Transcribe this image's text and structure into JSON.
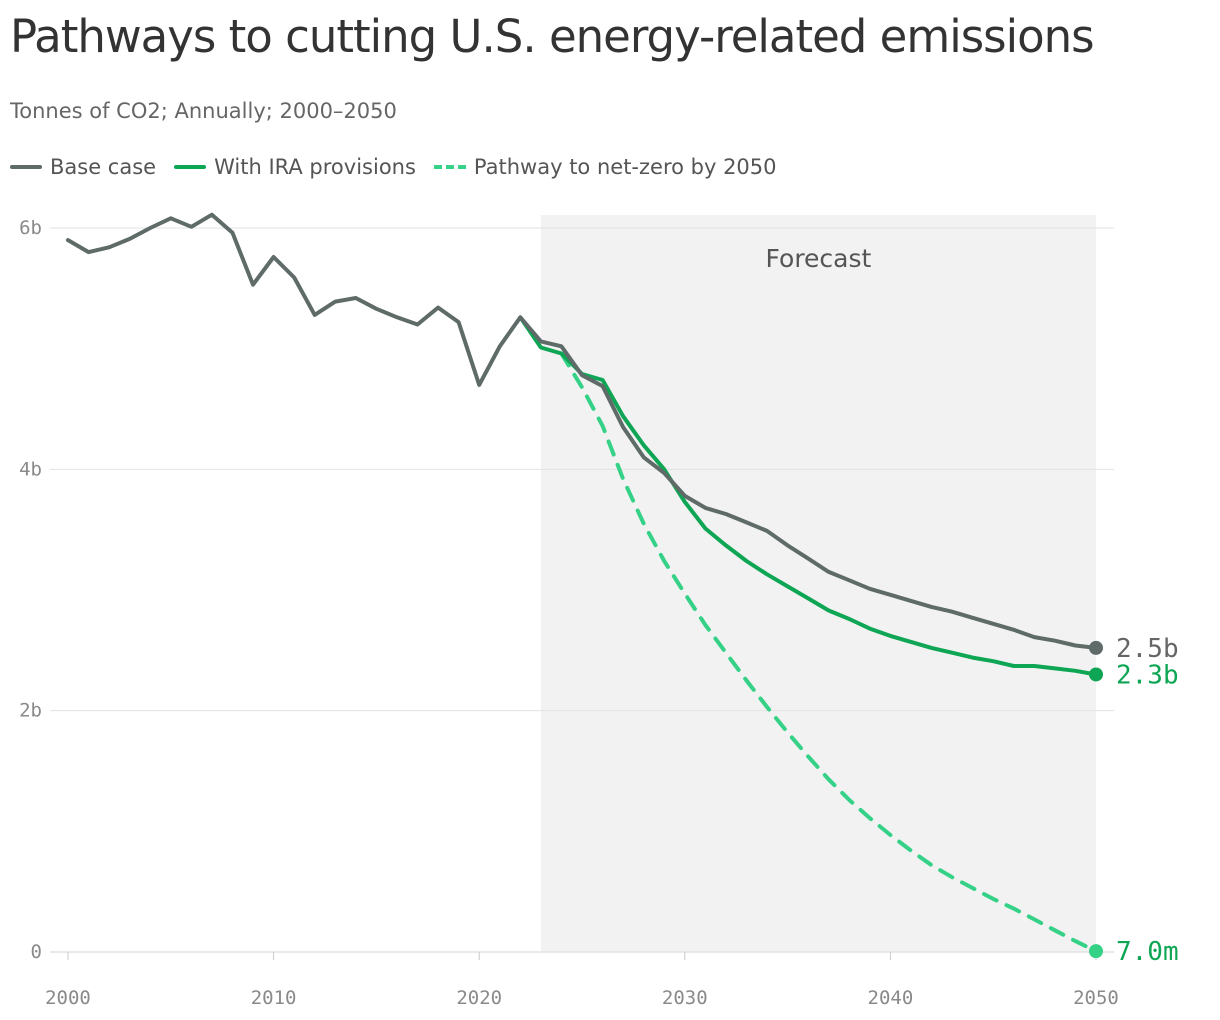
{
  "title": "Pathways to cutting U.S. energy-related emissions",
  "subtitle": "Tonnes of CO2; Annually; 2000–2050",
  "colors": {
    "base": "#5f6b68",
    "ira": "#0ea654",
    "netzero": "#34d187",
    "forecast_band": "#f2f2f2",
    "grid": "#e2e2e2"
  },
  "forecast_label": "Forecast",
  "chart_data": {
    "type": "line",
    "title": "Pathways to cutting U.S. energy-related emissions",
    "xlabel": "",
    "ylabel": "",
    "xlim": [
      2000,
      2050
    ],
    "ylim": [
      0,
      6.1
    ],
    "unit": "billion tonnes",
    "x_ticks": [
      2000,
      2010,
      2020,
      2030,
      2040,
      2050
    ],
    "x_tick_labels": [
      "2000",
      "2010",
      "2020",
      "2030",
      "2040",
      "2050"
    ],
    "y_ticks": [
      0,
      2,
      4,
      6
    ],
    "y_tick_labels": [
      "0",
      "2b",
      "4b",
      "6b"
    ],
    "grid": "horizontal",
    "legend": "top-left",
    "forecast_region": [
      2023,
      2050
    ],
    "series": [
      {
        "name": "Base case",
        "style": "solid",
        "color_key": "base",
        "end_label": "2.5b",
        "x": [
          2000,
          2001,
          2002,
          2003,
          2004,
          2005,
          2006,
          2007,
          2008,
          2009,
          2010,
          2011,
          2012,
          2013,
          2014,
          2015,
          2016,
          2017,
          2018,
          2019,
          2020,
          2021,
          2022,
          2023,
          2024,
          2025,
          2026,
          2027,
          2028,
          2029,
          2030,
          2031,
          2032,
          2033,
          2034,
          2035,
          2036,
          2037,
          2038,
          2039,
          2040,
          2041,
          2042,
          2043,
          2044,
          2045,
          2046,
          2047,
          2048,
          2049,
          2050
        ],
        "values": [
          5.9,
          5.8,
          5.84,
          5.91,
          6.0,
          6.08,
          6.01,
          6.11,
          5.96,
          5.53,
          5.76,
          5.59,
          5.28,
          5.39,
          5.42,
          5.33,
          5.26,
          5.2,
          5.34,
          5.22,
          4.7,
          5.02,
          5.26,
          5.06,
          5.02,
          4.78,
          4.69,
          4.35,
          4.1,
          3.97,
          3.78,
          3.68,
          3.63,
          3.56,
          3.49,
          3.37,
          3.26,
          3.15,
          3.08,
          3.01,
          2.96,
          2.91,
          2.86,
          2.82,
          2.77,
          2.72,
          2.67,
          2.61,
          2.58,
          2.54,
          2.52
        ]
      },
      {
        "name": "With IRA provisions",
        "style": "solid",
        "color_key": "ira",
        "end_label": "2.3b",
        "x": [
          2022,
          2023,
          2024,
          2025,
          2026,
          2027,
          2028,
          2029,
          2030,
          2031,
          2032,
          2033,
          2034,
          2035,
          2036,
          2037,
          2038,
          2039,
          2040,
          2041,
          2042,
          2043,
          2044,
          2045,
          2046,
          2047,
          2048,
          2049,
          2050
        ],
        "values": [
          5.26,
          5.01,
          4.96,
          4.79,
          4.74,
          4.44,
          4.2,
          4.0,
          3.73,
          3.51,
          3.37,
          3.24,
          3.13,
          3.03,
          2.93,
          2.83,
          2.76,
          2.68,
          2.62,
          2.57,
          2.52,
          2.48,
          2.44,
          2.41,
          2.37,
          2.37,
          2.35,
          2.33,
          2.3
        ]
      },
      {
        "name": "Pathway to net-zero by 2050",
        "style": "dashed",
        "color_key": "netzero",
        "end_label": "7.0m",
        "x": [
          2024,
          2025,
          2026,
          2027,
          2028,
          2029,
          2030,
          2031,
          2032,
          2033,
          2034,
          2035,
          2036,
          2037,
          2038,
          2039,
          2040,
          2041,
          2042,
          2043,
          2044,
          2045,
          2046,
          2047,
          2048,
          2049,
          2050
        ],
        "values": [
          4.96,
          4.68,
          4.36,
          3.92,
          3.55,
          3.24,
          2.97,
          2.71,
          2.48,
          2.25,
          2.03,
          1.82,
          1.62,
          1.43,
          1.26,
          1.11,
          0.97,
          0.84,
          0.72,
          0.62,
          0.53,
          0.44,
          0.36,
          0.27,
          0.18,
          0.09,
          0.007
        ]
      }
    ]
  }
}
